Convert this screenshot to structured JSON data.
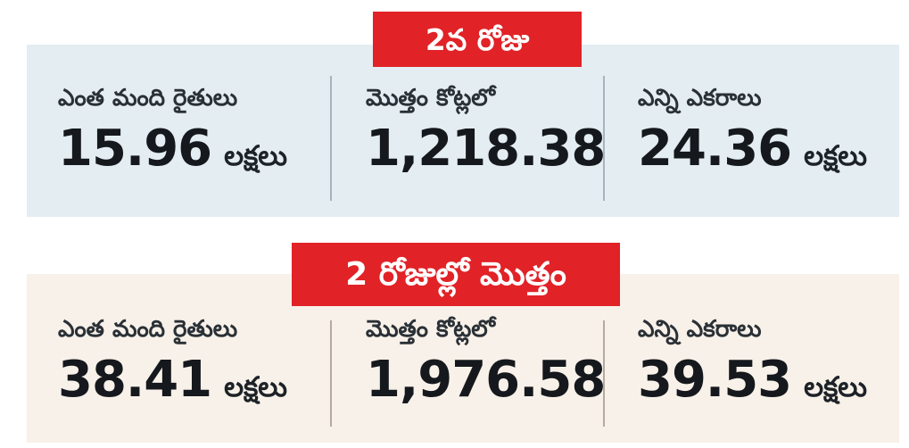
{
  "colors": {
    "page_bg": "#ffffff",
    "header_bg": "#e12227",
    "header_text": "#ffffff",
    "panel_day2_bg": "#e3edf2",
    "panel_total_bg": "#f8f1e9",
    "label_text": "#2a3036",
    "value_text": "#15181c",
    "divider_gray": "#a9b3ba"
  },
  "panels": [
    {
      "header": "2వ రోజు",
      "stats": [
        {
          "label": "ఎంత మంది రైతులు",
          "value": "15.96",
          "unit": "లక్షలు"
        },
        {
          "label": "మొత్తం కోట్లలో",
          "value": "1,218.38",
          "unit": ""
        },
        {
          "label": "ఎన్ని ఎకరాలు",
          "value": "24.36",
          "unit": "లక్షలు"
        }
      ]
    },
    {
      "header": "2 రోజుల్లో మొత్తం",
      "stats": [
        {
          "label": "ఎంత మంది రైతులు",
          "value": "38.41",
          "unit": "లక్షలు"
        },
        {
          "label": "మొత్తం కోట్లలో",
          "value": "1,976.58",
          "unit": ""
        },
        {
          "label": "ఎన్ని ఎకరాలు",
          "value": "39.53",
          "unit": "లక్షలు"
        }
      ]
    }
  ],
  "chart_data": {
    "type": "table",
    "title": "",
    "row_headers": [
      "2వ రోజు",
      "2 రోజుల్లో మొత్తం"
    ],
    "columns": [
      "ఎంత మంది రైతులు (లక్షలు)",
      "మొత్తం కోట్లలో",
      "ఎన్ని ఎకరాలు (లక్షలు)"
    ],
    "rows": [
      [
        15.96,
        1218.38,
        24.36
      ],
      [
        38.41,
        1976.58,
        39.53
      ]
    ]
  }
}
